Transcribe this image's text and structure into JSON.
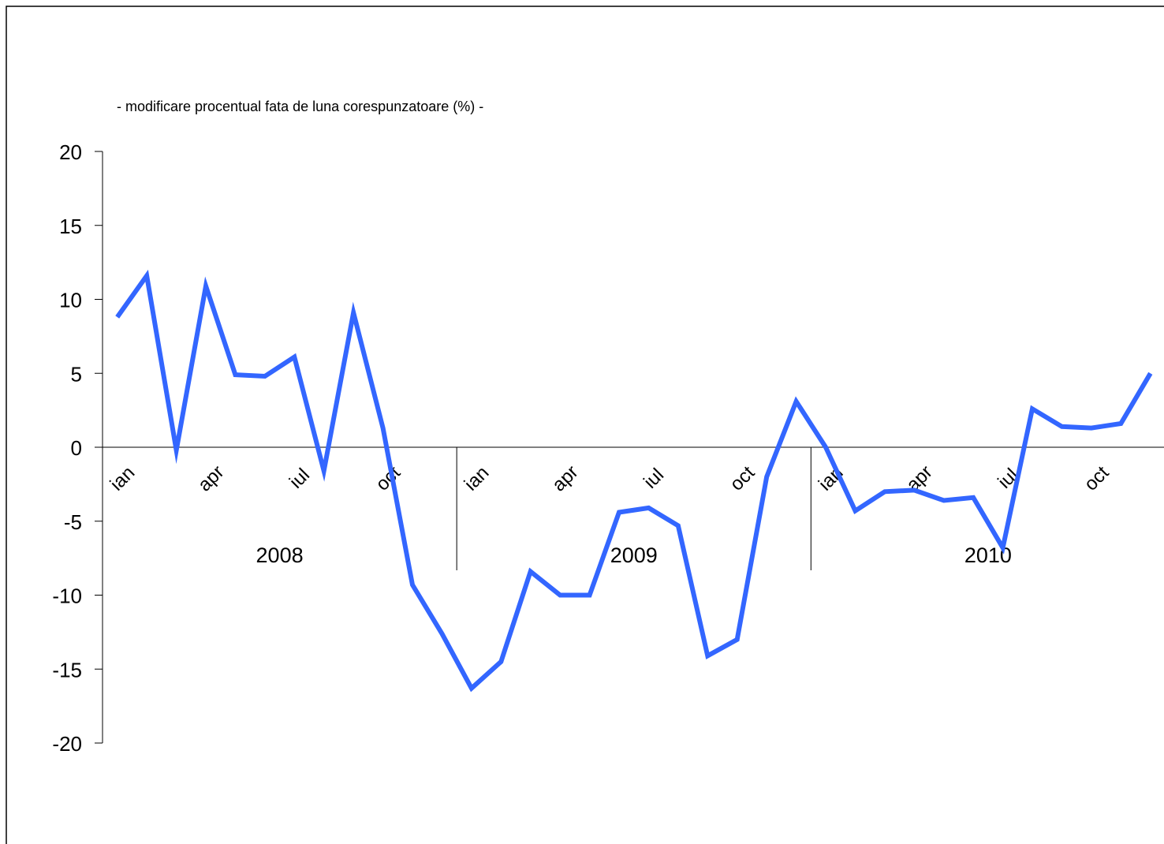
{
  "chart_data": {
    "type": "line",
    "subtitle": "- modificare procentual fata de luna corespunzatoare (%) -",
    "ylim": [
      -20,
      20
    ],
    "yticks": [
      20,
      15,
      10,
      5,
      0,
      -5,
      -10,
      -15,
      -20
    ],
    "ytick_labels": [
      "20",
      "15",
      "10",
      "5",
      "0",
      "-5",
      "-10",
      "-15",
      "-20"
    ],
    "years": [
      "2008",
      "2009",
      "2010"
    ],
    "month_tick_labels": [
      "ian",
      "apr",
      "iul",
      "oct"
    ],
    "series": [
      {
        "color": "#3366ff",
        "values": [
          8.8,
          11.6,
          -0.2,
          10.9,
          4.9,
          4.8,
          6.1,
          -1.6,
          9.1,
          1.3,
          -9.3,
          -12.6,
          -16.3,
          -14.5,
          -8.4,
          -10.0,
          -10.0,
          -4.4,
          -4.1,
          -5.3,
          -14.1,
          -13.0,
          -2.0,
          3.1,
          0.0,
          -4.3,
          -3.0,
          -2.9,
          -3.6,
          -3.4,
          -6.8,
          2.6,
          1.4,
          1.3,
          1.6,
          5.0
        ]
      }
    ],
    "grid": false,
    "legend": "none"
  }
}
